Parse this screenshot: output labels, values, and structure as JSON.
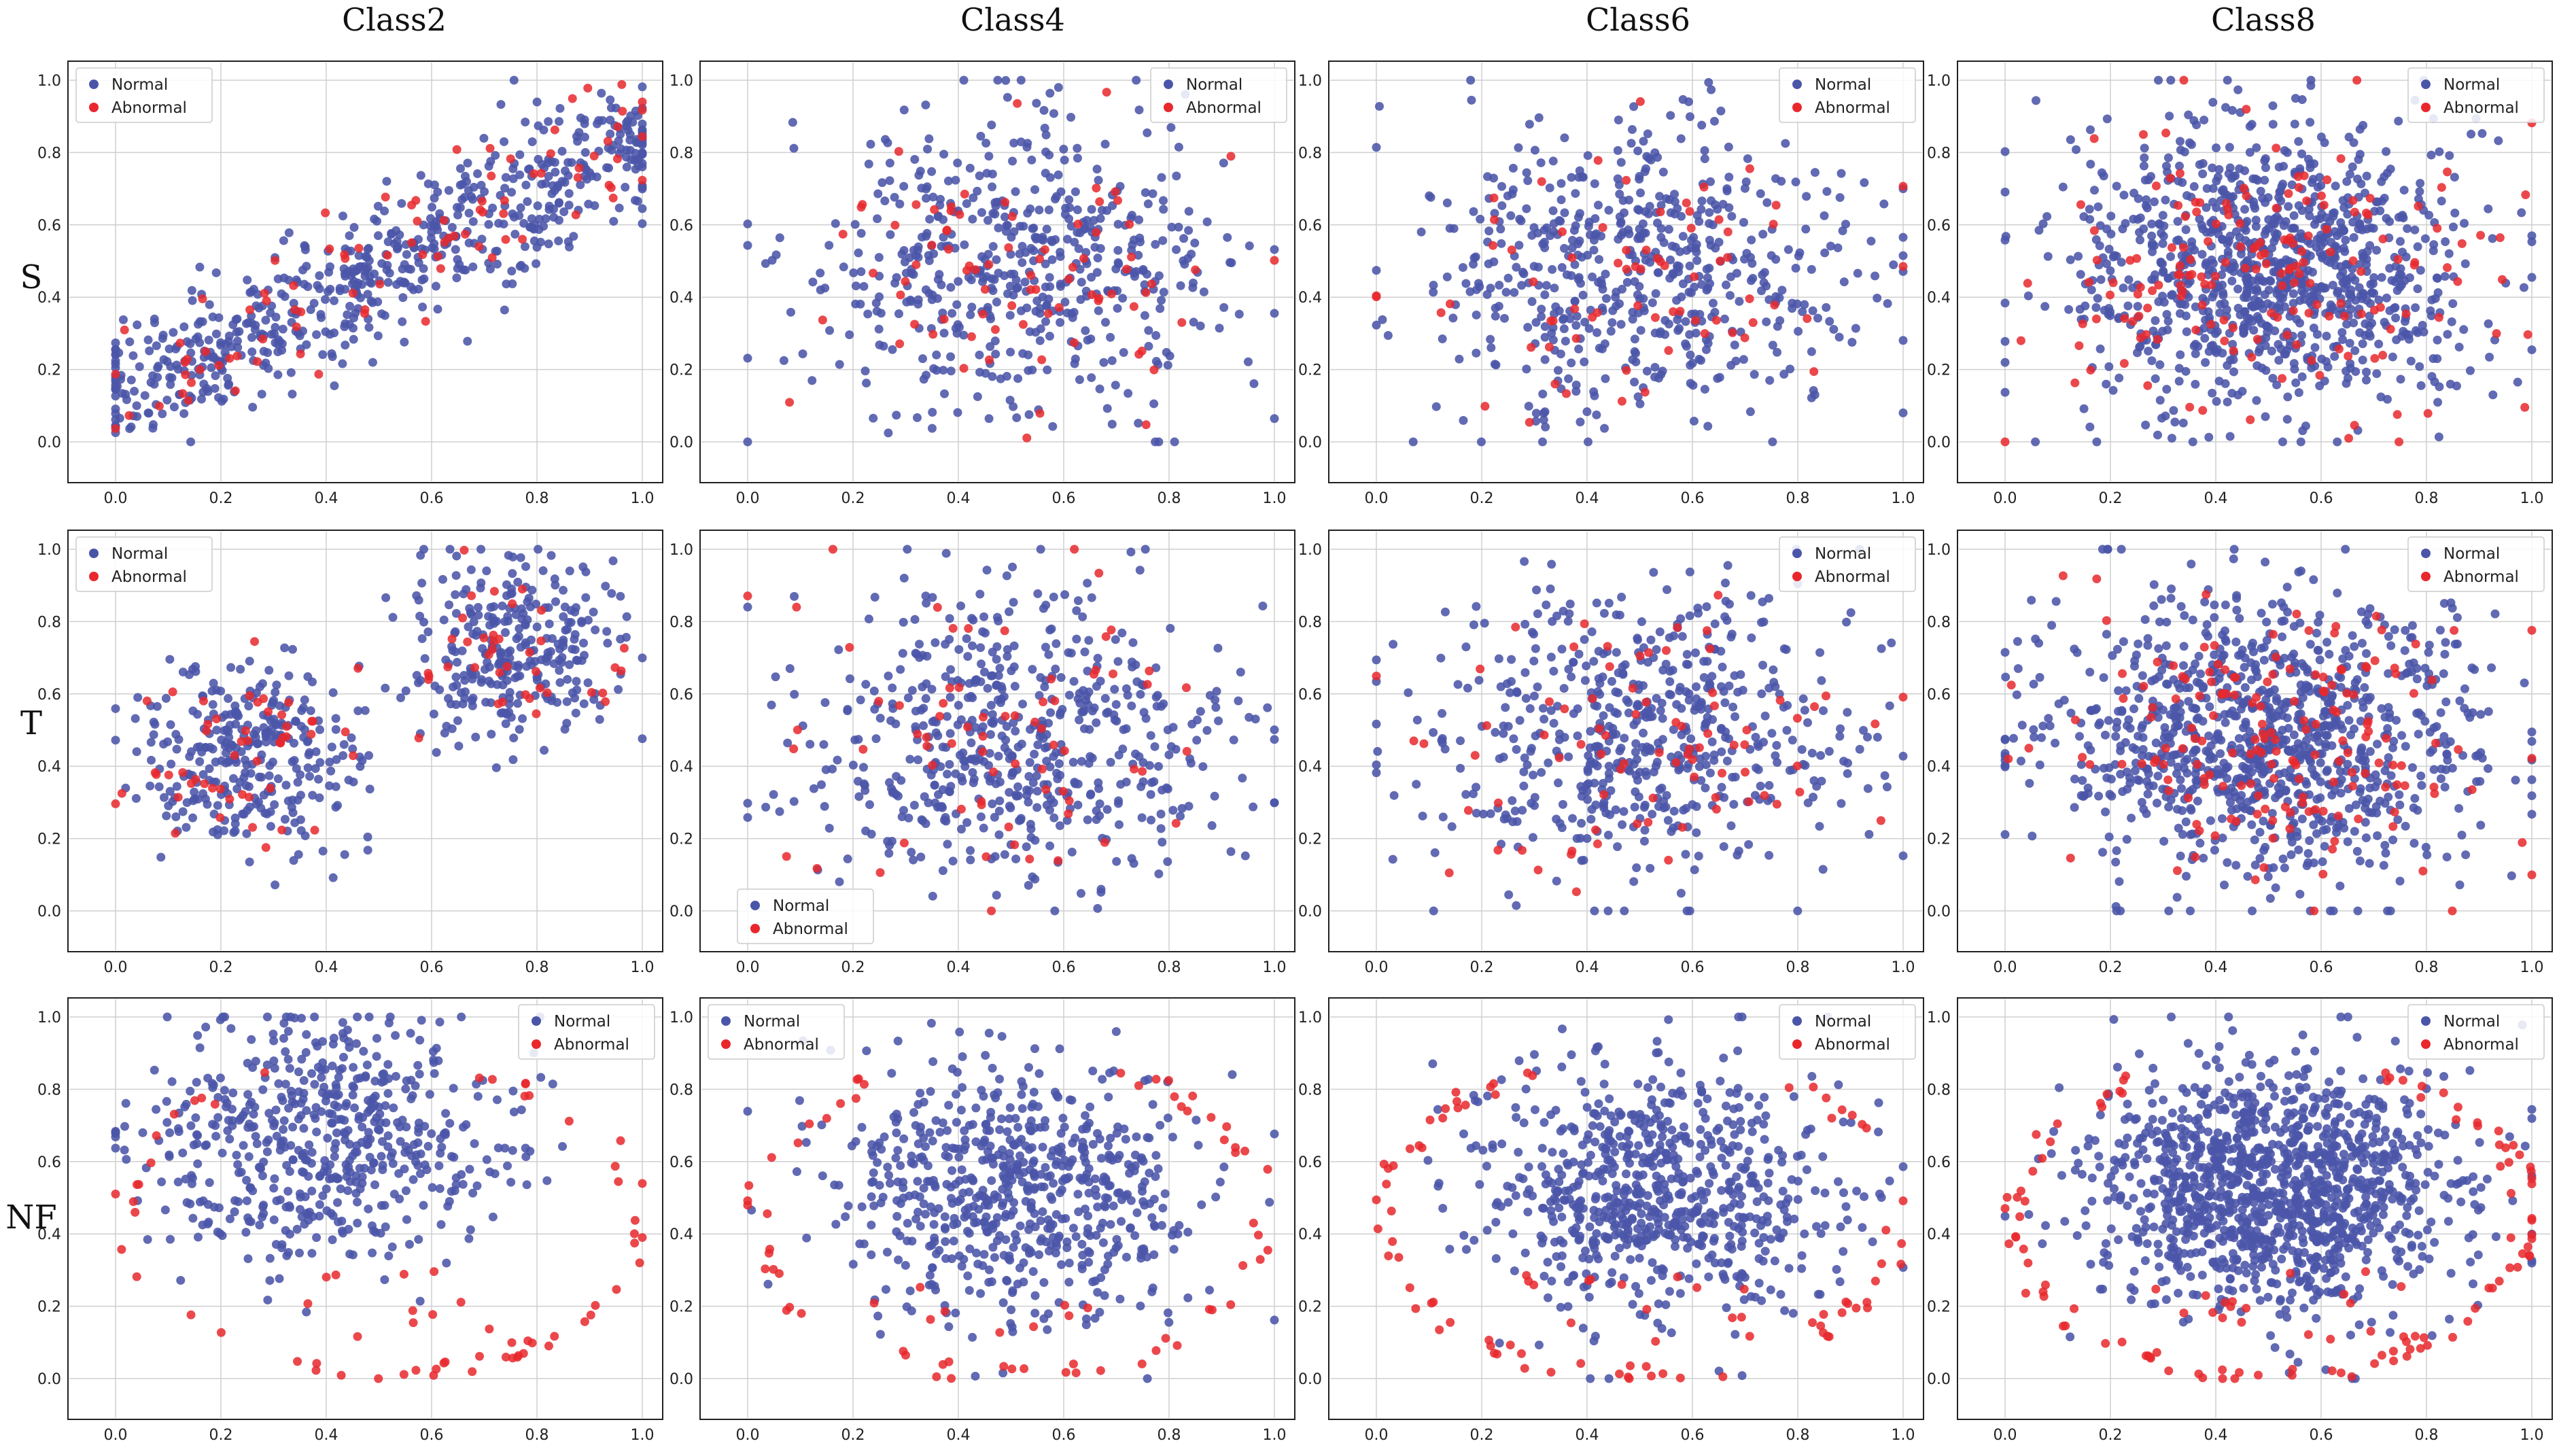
{
  "col_titles": [
    "Class2",
    "Class4",
    "Class6",
    "Class8"
  ],
  "row_labels": [
    "S",
    "T",
    "NF"
  ],
  "colors": {
    "normal": "#4b55a8",
    "abnormal": "#e8282d",
    "grid": "#cfcfcf",
    "frame": "#222222"
  },
  "chart_data": {
    "type": "scatter",
    "layout": "3x4 grid of scatter subplots (rows: S, T, NF; columns: Class2, Class4, Class6, Class8)",
    "xlim": [
      0,
      1
    ],
    "ylim": [
      0,
      1
    ],
    "x_ticks": [
      "0.0",
      "0.2",
      "0.4",
      "0.6",
      "0.8",
      "1.0"
    ],
    "y_ticks": [
      "0.0",
      "0.2",
      "0.4",
      "0.6",
      "0.8",
      "1.0"
    ],
    "grid": true,
    "series": [
      {
        "name": "Normal",
        "color": "#4b55a8"
      },
      {
        "name": "Abnormal",
        "color": "#e8282d"
      }
    ],
    "panels": [
      {
        "row": "S",
        "col": "Class2",
        "legend": "upper left",
        "normal_count": 640,
        "abnormal_count": 90
      },
      {
        "row": "S",
        "col": "Class4",
        "legend": "upper right",
        "normal_count": 520,
        "abnormal_count": 80
      },
      {
        "row": "S",
        "col": "Class6",
        "legend": "upper right",
        "normal_count": 560,
        "abnormal_count": 70
      },
      {
        "row": "S",
        "col": "Class8",
        "legend": "upper right",
        "normal_count": 1000,
        "abnormal_count": 170
      },
      {
        "row": "T",
        "col": "Class2",
        "legend": "upper left",
        "normal_count": 600,
        "abnormal_count": 90
      },
      {
        "row": "T",
        "col": "Class4",
        "legend": "lower left",
        "normal_count": 560,
        "abnormal_count": 70
      },
      {
        "row": "T",
        "col": "Class6",
        "legend": "upper right",
        "normal_count": 560,
        "abnormal_count": 80
      },
      {
        "row": "T",
        "col": "Class8",
        "legend": "upper right",
        "normal_count": 1000,
        "abnormal_count": 170
      },
      {
        "row": "NF",
        "col": "Class2",
        "legend": "upper right",
        "normal_count": 560,
        "abnormal_count": 70
      },
      {
        "row": "NF",
        "col": "Class4",
        "legend": "upper left",
        "normal_count": 640,
        "abnormal_count": 70
      },
      {
        "row": "NF",
        "col": "Class6",
        "legend": "upper right",
        "normal_count": 700,
        "abnormal_count": 90
      },
      {
        "row": "NF",
        "col": "Class8",
        "legend": "upper right",
        "normal_count": 1200,
        "abnormal_count": 120
      }
    ]
  }
}
